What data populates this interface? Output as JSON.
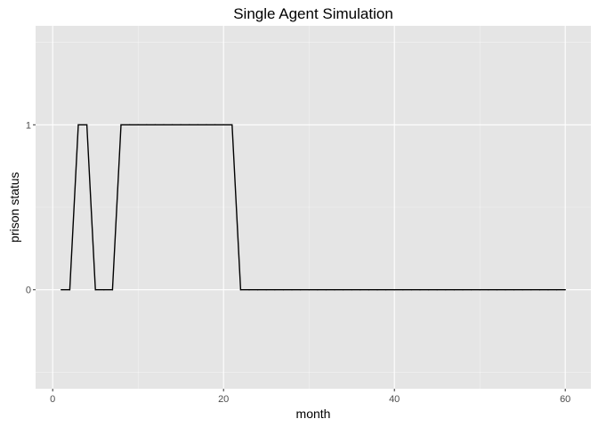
{
  "chart_data": {
    "type": "line",
    "title": "Single Agent Simulation",
    "xlabel": "month",
    "ylabel": "prison status",
    "xlim": [
      -2,
      63
    ],
    "ylim": [
      -0.6,
      1.6
    ],
    "x_ticks": [
      0,
      20,
      40,
      60
    ],
    "x_tick_labels": [
      "0",
      "20",
      "40",
      "60"
    ],
    "y_ticks": [
      0,
      1
    ],
    "y_tick_labels": [
      "0",
      "1"
    ],
    "grid": true,
    "series": [
      {
        "color": "#000000",
        "x": [
          1,
          2,
          3,
          4,
          5,
          6,
          7,
          8,
          9,
          10,
          11,
          12,
          13,
          14,
          15,
          16,
          17,
          18,
          19,
          20,
          21,
          22,
          23,
          24,
          25,
          26,
          27,
          28,
          29,
          30,
          31,
          32,
          33,
          34,
          35,
          36,
          37,
          38,
          39,
          40,
          41,
          42,
          43,
          44,
          45,
          46,
          47,
          48,
          49,
          50,
          51,
          52,
          53,
          54,
          55,
          56,
          57,
          58,
          59,
          60
        ],
        "y": [
          0,
          0,
          1,
          1,
          0,
          0,
          0,
          1,
          1,
          1,
          1,
          1,
          1,
          1,
          1,
          1,
          1,
          1,
          1,
          1,
          1,
          0,
          0,
          0,
          0,
          0,
          0,
          0,
          0,
          0,
          0,
          0,
          0,
          0,
          0,
          0,
          0,
          0,
          0,
          0,
          0,
          0,
          0,
          0,
          0,
          0,
          0,
          0,
          0,
          0,
          0,
          0,
          0,
          0,
          0,
          0,
          0,
          0,
          0,
          0
        ]
      }
    ]
  },
  "colors": {
    "panel_background": "#e5e5e5",
    "grid_major": "#ffffff",
    "line": "#000000",
    "tick_text": "#4d4d4d"
  }
}
